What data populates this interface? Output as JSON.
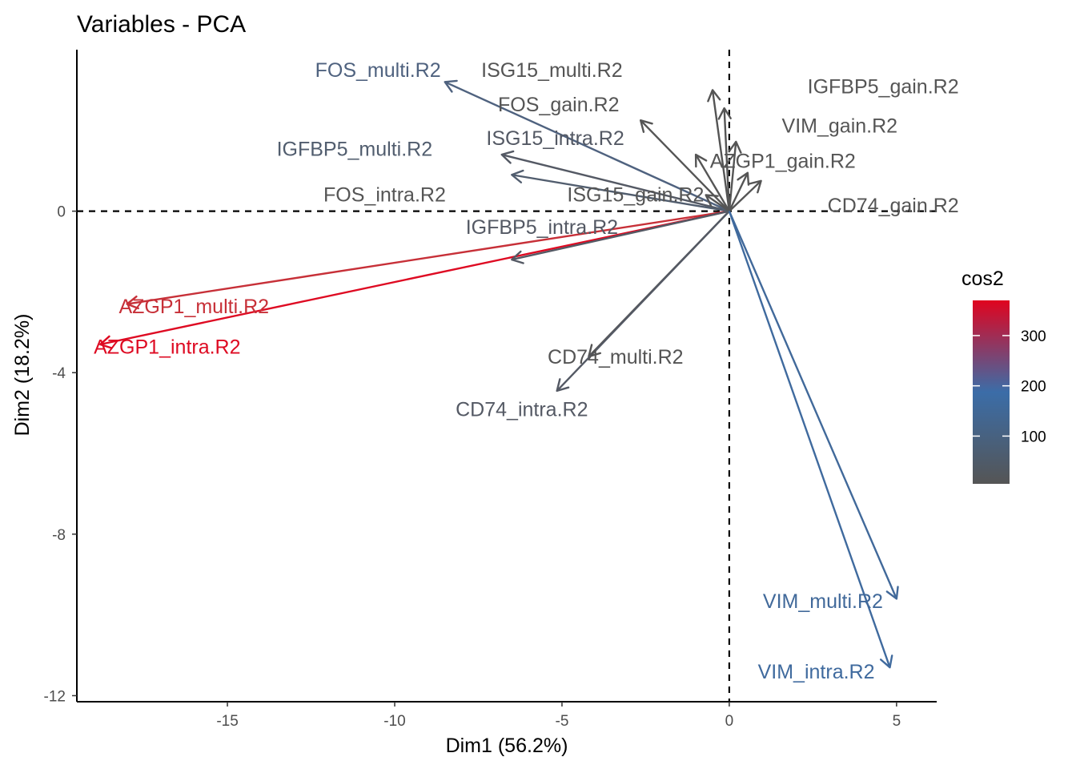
{
  "chart_data": {
    "type": "scatter",
    "title": "Variables - PCA",
    "xlabel": "Dim1 (56.2%)",
    "ylabel": "Dim2 (18.2%)",
    "xlim": [
      -19.5,
      6.2
    ],
    "ylim": [
      -12.15,
      4.0
    ],
    "xticks": [
      -15,
      -10,
      -5,
      0,
      5
    ],
    "yticks": [
      -12,
      -8,
      -4,
      0
    ],
    "grid": false,
    "reference_lines": {
      "x": 0,
      "y": 0,
      "style": "dashed"
    },
    "legend": {
      "title": "cos2",
      "position": "right",
      "ticks": [
        100,
        200,
        300
      ],
      "range": [
        5,
        370
      ],
      "colors": [
        "#555555",
        "#3B6DA8",
        "#E0041F"
      ]
    },
    "series": [
      {
        "name": "AZGP1_multi.R2",
        "x": -18.0,
        "y": -2.3,
        "label_x": -16.0,
        "label_y": -2.35,
        "color": "#C73038"
      },
      {
        "name": "AZGP1_intra.R2",
        "x": -18.8,
        "y": -3.3,
        "label_x": -16.8,
        "label_y": -3.35,
        "color": "#DE0A22"
      },
      {
        "name": "FOS_multi.R2",
        "x": -8.5,
        "y": 3.2,
        "label_x": -10.5,
        "label_y": 3.5,
        "color": "#4F627F"
      },
      {
        "name": "FOS_gain.R2",
        "x": -2.65,
        "y": 2.25,
        "label_x": -5.1,
        "label_y": 2.65,
        "color": "#555555"
      },
      {
        "name": "ISG15_intra.R2",
        "x": -6.8,
        "y": 1.4,
        "label_x": -5.2,
        "label_y": 1.82,
        "color": "#545964"
      },
      {
        "name": "IGFBP5_multi.R2",
        "x": -6.5,
        "y": 0.9,
        "label_x": -11.2,
        "label_y": 1.55,
        "color": "#515D6E"
      },
      {
        "name": "FOS_intra.R2",
        "x": -1.0,
        "y": 1.4,
        "label_x": -10.3,
        "label_y": 0.42,
        "color": "#555555"
      },
      {
        "name": "ISG15_gain.R2",
        "x": -0.7,
        "y": 0.4,
        "label_x": -2.8,
        "label_y": 0.42,
        "color": "#555555"
      },
      {
        "name": "ISG15_multi.R2",
        "x": -0.5,
        "y": 3.0,
        "label_x": -5.3,
        "label_y": 3.5,
        "color": "#545454"
      },
      {
        "name": "IGFBP5_gain.R2",
        "x": -0.15,
        "y": 2.55,
        "label_x": 4.6,
        "label_y": 3.1,
        "color": "#555555"
      },
      {
        "name": "VIM_gain.R2",
        "x": 0.2,
        "y": 1.72,
        "label_x": 3.3,
        "label_y": 2.13,
        "color": "#555555"
      },
      {
        "name": "AZGP1_gain.R2",
        "x": 0.55,
        "y": 0.95,
        "label_x": 1.6,
        "label_y": 1.25,
        "color": "#555555"
      },
      {
        "name": "CD74_gain.R2",
        "x": 0.95,
        "y": 0.75,
        "label_x": 4.9,
        "label_y": 0.15,
        "color": "#555555"
      },
      {
        "name": "IGFBP5_intra.R2",
        "x": -6.5,
        "y": -1.2,
        "label_x": -5.6,
        "label_y": -0.38,
        "color": "#545964"
      },
      {
        "name": "CD74_multi.R2",
        "x": -4.2,
        "y": -3.6,
        "label_x": -3.4,
        "label_y": -3.6,
        "color": "#545454"
      },
      {
        "name": "CD74_intra.R2",
        "x": -5.15,
        "y": -4.45,
        "label_x": -6.2,
        "label_y": -4.9,
        "color": "#545964"
      },
      {
        "name": "VIM_multi.R2",
        "x": 5.0,
        "y": -9.6,
        "label_x": 2.8,
        "label_y": -9.65,
        "color": "#41699A"
      },
      {
        "name": "VIM_intra.R2",
        "x": 4.8,
        "y": -11.3,
        "label_x": 2.6,
        "label_y": -11.4,
        "color": "#3F6A9E"
      }
    ]
  }
}
